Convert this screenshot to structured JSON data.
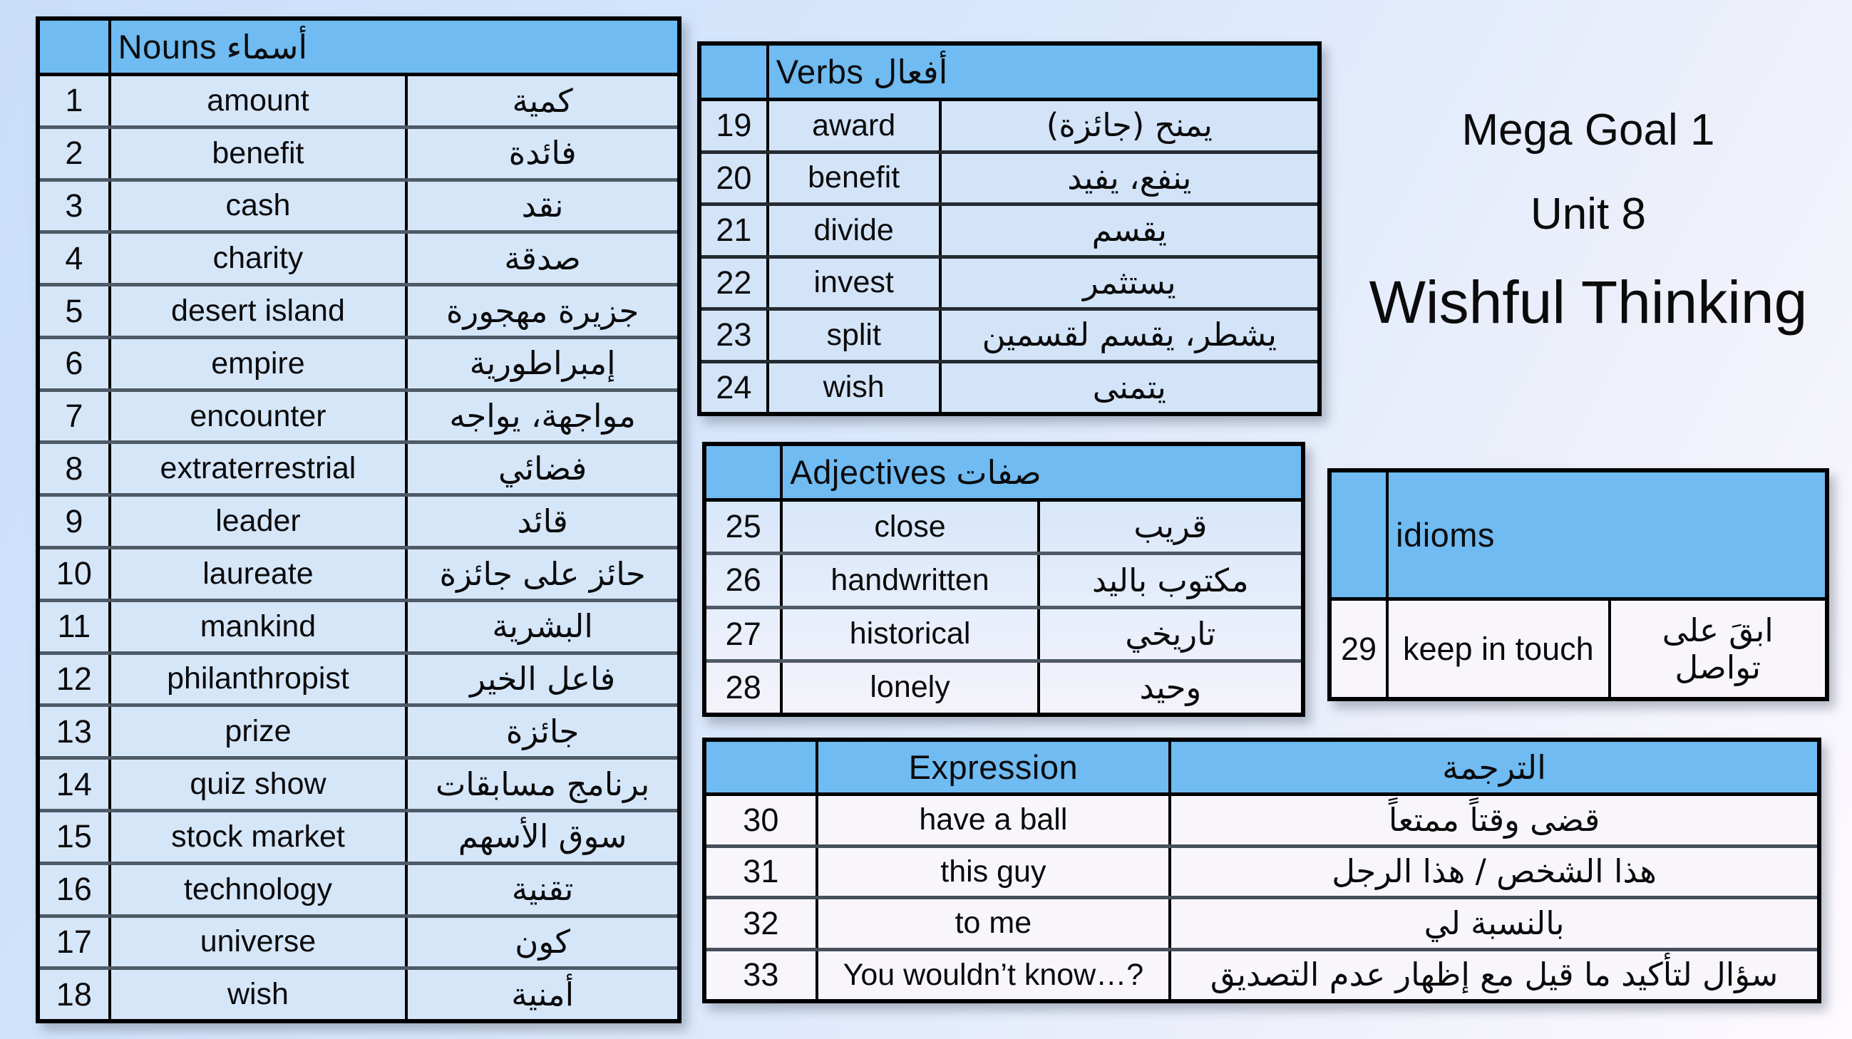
{
  "title": {
    "line1": "Mega Goal 1",
    "line2": "Unit 8",
    "line3": "Wishful Thinking"
  },
  "colors": {
    "header_blue": "#6fbbf2",
    "table_body_blue": "#d6e6f9",
    "table_body_light": "#f8f6fb",
    "border_black": "#000000",
    "page_background_top": "#c9def9",
    "page_background_bottom": "#fefaff"
  },
  "tables": {
    "nouns": {
      "header_en": "Nouns",
      "header_ar": "أسماء",
      "rows": [
        {
          "num": "1",
          "en": "amount",
          "ar": "كمية"
        },
        {
          "num": "2",
          "en": "benefit",
          "ar": "فائدة"
        },
        {
          "num": "3",
          "en": "cash",
          "ar": "نقد"
        },
        {
          "num": "4",
          "en": "charity",
          "ar": "صدقة"
        },
        {
          "num": "5",
          "en": "desert island",
          "ar": "جزيرة مهجورة"
        },
        {
          "num": "6",
          "en": "empire",
          "ar": "إمبراطورية"
        },
        {
          "num": "7",
          "en": "encounter",
          "ar": "مواجهة، يواجه"
        },
        {
          "num": "8",
          "en": "extraterrestrial",
          "ar": "فضائي"
        },
        {
          "num": "9",
          "en": "leader",
          "ar": "قائد"
        },
        {
          "num": "10",
          "en": "laureate",
          "ar": "حائز على جائزة"
        },
        {
          "num": "11",
          "en": "mankind",
          "ar": "البشرية"
        },
        {
          "num": "12",
          "en": "philanthropist",
          "ar": "فاعل الخير"
        },
        {
          "num": "13",
          "en": "prize",
          "ar": "جائزة"
        },
        {
          "num": "14",
          "en": "quiz show",
          "ar": "برنامج مسابقات"
        },
        {
          "num": "15",
          "en": "stock market",
          "ar": "سوق الأسهم"
        },
        {
          "num": "16",
          "en": "technology",
          "ar": "تقنية"
        },
        {
          "num": "17",
          "en": "universe",
          "ar": "كون"
        },
        {
          "num": "18",
          "en": "wish",
          "ar": "أمنية"
        }
      ]
    },
    "verbs": {
      "header_en": "Verbs",
      "header_ar": "أفعال",
      "rows": [
        {
          "num": "19",
          "en": "award",
          "ar": "يمنح (جائزة)"
        },
        {
          "num": "20",
          "en": "benefit",
          "ar": "ينفع، يفيد"
        },
        {
          "num": "21",
          "en": "divide",
          "ar": "يقسم"
        },
        {
          "num": "22",
          "en": "invest",
          "ar": "يستثمر"
        },
        {
          "num": "23",
          "en": "split",
          "ar": "يشطر، يقسم لقسمين"
        },
        {
          "num": "24",
          "en": "wish",
          "ar": "يتمنى"
        }
      ]
    },
    "adjectives": {
      "header_en": "Adjectives",
      "header_ar": "صفات",
      "rows": [
        {
          "num": "25",
          "en": "close",
          "ar": "قريب"
        },
        {
          "num": "26",
          "en": "handwritten",
          "ar": "مكتوب باليد"
        },
        {
          "num": "27",
          "en": "historical",
          "ar": "تاريخي"
        },
        {
          "num": "28",
          "en": "lonely",
          "ar": "وحيد"
        }
      ]
    },
    "idioms": {
      "header_en": "idioms",
      "header_ar": "",
      "rows": [
        {
          "num": "29",
          "en": "keep in touch",
          "ar": "ابقَ على تواصل"
        }
      ]
    },
    "expression": {
      "header_en": "Expression",
      "header_ar": "الترجمة",
      "rows": [
        {
          "num": "30",
          "en": "have a ball",
          "ar": "قضى وقتاً ممتعاً"
        },
        {
          "num": "31",
          "en": "this guy",
          "ar": "هذا الشخص / هذا الرجل"
        },
        {
          "num": "32",
          "en": "to me",
          "ar": "بالنسبة لي"
        },
        {
          "num": "33",
          "en": "You wouldn’t know…?",
          "ar": "سؤال لتأكيد ما قيل مع إظهار عدم التصديق"
        }
      ]
    }
  }
}
